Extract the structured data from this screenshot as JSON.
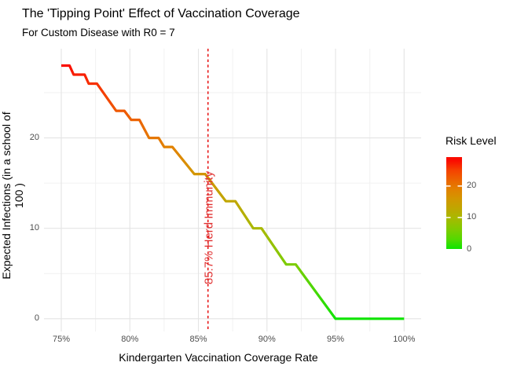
{
  "chart_data": {
    "type": "line",
    "title": "The 'Tipping Point' Effect of Vaccination Coverage",
    "subtitle": "For Custom Disease with R0 = 7",
    "xlabel": "Kindergarten Vaccination Coverage Rate",
    "ylabel": "Expected Infections (in a school of 100 )",
    "xlim": [
      73.75,
      101.25
    ],
    "ylim": [
      -1.4,
      29.9
    ],
    "grid": true,
    "legend_position": "right",
    "x_ticks": {
      "values": [
        75,
        80,
        85,
        90,
        95,
        100
      ],
      "labels": [
        "75%",
        "80%",
        "85%",
        "90%",
        "95%",
        "100%"
      ]
    },
    "x_minor_ticks": [
      77.5,
      82.5,
      87.5,
      92.5,
      97.5
    ],
    "y_ticks": {
      "values": [
        0,
        10,
        20
      ],
      "labels": [
        "0",
        "10",
        "20"
      ]
    },
    "y_minor_ticks": [
      5,
      15,
      25
    ],
    "series": [
      {
        "name": "expected_infections",
        "points": [
          [
            75.0,
            28
          ],
          [
            75.6,
            28
          ],
          [
            75.9,
            27
          ],
          [
            76.7,
            27
          ],
          [
            77.0,
            26
          ],
          [
            77.6,
            26
          ],
          [
            79.0,
            23
          ],
          [
            79.6,
            23
          ],
          [
            80.1,
            22
          ],
          [
            80.7,
            22
          ],
          [
            81.4,
            20
          ],
          [
            82.1,
            20
          ],
          [
            82.5,
            19
          ],
          [
            83.1,
            19
          ],
          [
            84.7,
            16
          ],
          [
            85.5,
            16
          ],
          [
            87.0,
            13
          ],
          [
            87.7,
            13
          ],
          [
            89.0,
            10
          ],
          [
            89.6,
            10
          ],
          [
            91.4,
            6
          ],
          [
            92.1,
            6
          ],
          [
            95.0,
            0
          ],
          [
            100.0,
            0
          ]
        ]
      }
    ],
    "color_scale": {
      "title": "Risk Level",
      "anchors": [
        [
          0,
          "#0EE400"
        ],
        [
          3,
          "#52D900"
        ],
        [
          6,
          "#7CCC00"
        ],
        [
          10,
          "#A9B800"
        ],
        [
          13,
          "#C0A600"
        ],
        [
          16,
          "#D39600"
        ],
        [
          19,
          "#E28100"
        ],
        [
          22,
          "#EC6300"
        ],
        [
          25,
          "#F54200"
        ],
        [
          28,
          "#FA0C00"
        ]
      ],
      "legend_ticks": {
        "values": [
          0,
          10,
          20
        ],
        "labels": [
          "0",
          "10",
          "20"
        ]
      },
      "legend_max": 29.2
    },
    "annotation": {
      "x": 85.7,
      "label": "85.7% Herd Immunity",
      "line_color": "#E60000",
      "text_color": "#E03030"
    },
    "grid_major_color": "#E4E4E4",
    "grid_minor_color": "#F1F1F1",
    "tick_label_color": "#4d4d4d"
  }
}
